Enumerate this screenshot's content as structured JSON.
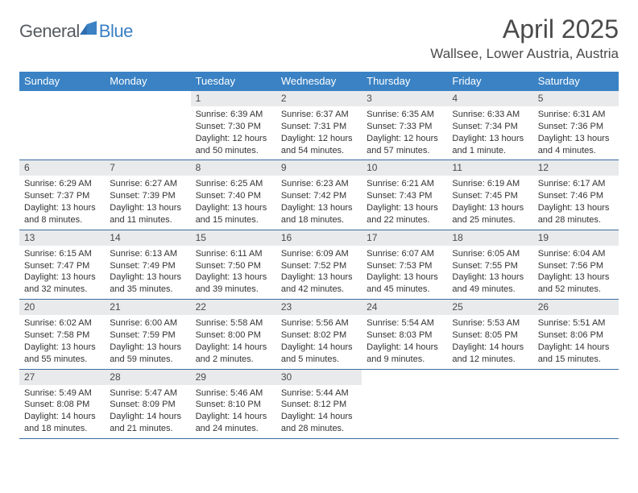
{
  "logo": {
    "text1": "General",
    "text2": "Blue"
  },
  "title": {
    "month": "April 2025",
    "location": "Wallsee, Lower Austria, Austria"
  },
  "colors": {
    "header_bg": "#3a82c4",
    "header_text": "#ffffff",
    "daynum_bg": "#e9eaec",
    "row_divider": "#3a6ea0",
    "body_text": "#333333",
    "title_text": "#4a4a4a",
    "logo_gray": "#555a60",
    "logo_blue": "#3a7fc4"
  },
  "weekdays": [
    "Sunday",
    "Monday",
    "Tuesday",
    "Wednesday",
    "Thursday",
    "Friday",
    "Saturday"
  ],
  "weeks": [
    [
      null,
      null,
      {
        "n": "1",
        "sr": "6:39 AM",
        "ss": "7:30 PM",
        "dl": "12 hours and 50 minutes."
      },
      {
        "n": "2",
        "sr": "6:37 AM",
        "ss": "7:31 PM",
        "dl": "12 hours and 54 minutes."
      },
      {
        "n": "3",
        "sr": "6:35 AM",
        "ss": "7:33 PM",
        "dl": "12 hours and 57 minutes."
      },
      {
        "n": "4",
        "sr": "6:33 AM",
        "ss": "7:34 PM",
        "dl": "13 hours and 1 minute."
      },
      {
        "n": "5",
        "sr": "6:31 AM",
        "ss": "7:36 PM",
        "dl": "13 hours and 4 minutes."
      }
    ],
    [
      {
        "n": "6",
        "sr": "6:29 AM",
        "ss": "7:37 PM",
        "dl": "13 hours and 8 minutes."
      },
      {
        "n": "7",
        "sr": "6:27 AM",
        "ss": "7:39 PM",
        "dl": "13 hours and 11 minutes."
      },
      {
        "n": "8",
        "sr": "6:25 AM",
        "ss": "7:40 PM",
        "dl": "13 hours and 15 minutes."
      },
      {
        "n": "9",
        "sr": "6:23 AM",
        "ss": "7:42 PM",
        "dl": "13 hours and 18 minutes."
      },
      {
        "n": "10",
        "sr": "6:21 AM",
        "ss": "7:43 PM",
        "dl": "13 hours and 22 minutes."
      },
      {
        "n": "11",
        "sr": "6:19 AM",
        "ss": "7:45 PM",
        "dl": "13 hours and 25 minutes."
      },
      {
        "n": "12",
        "sr": "6:17 AM",
        "ss": "7:46 PM",
        "dl": "13 hours and 28 minutes."
      }
    ],
    [
      {
        "n": "13",
        "sr": "6:15 AM",
        "ss": "7:47 PM",
        "dl": "13 hours and 32 minutes."
      },
      {
        "n": "14",
        "sr": "6:13 AM",
        "ss": "7:49 PM",
        "dl": "13 hours and 35 minutes."
      },
      {
        "n": "15",
        "sr": "6:11 AM",
        "ss": "7:50 PM",
        "dl": "13 hours and 39 minutes."
      },
      {
        "n": "16",
        "sr": "6:09 AM",
        "ss": "7:52 PM",
        "dl": "13 hours and 42 minutes."
      },
      {
        "n": "17",
        "sr": "6:07 AM",
        "ss": "7:53 PM",
        "dl": "13 hours and 45 minutes."
      },
      {
        "n": "18",
        "sr": "6:05 AM",
        "ss": "7:55 PM",
        "dl": "13 hours and 49 minutes."
      },
      {
        "n": "19",
        "sr": "6:04 AM",
        "ss": "7:56 PM",
        "dl": "13 hours and 52 minutes."
      }
    ],
    [
      {
        "n": "20",
        "sr": "6:02 AM",
        "ss": "7:58 PM",
        "dl": "13 hours and 55 minutes."
      },
      {
        "n": "21",
        "sr": "6:00 AM",
        "ss": "7:59 PM",
        "dl": "13 hours and 59 minutes."
      },
      {
        "n": "22",
        "sr": "5:58 AM",
        "ss": "8:00 PM",
        "dl": "14 hours and 2 minutes."
      },
      {
        "n": "23",
        "sr": "5:56 AM",
        "ss": "8:02 PM",
        "dl": "14 hours and 5 minutes."
      },
      {
        "n": "24",
        "sr": "5:54 AM",
        "ss": "8:03 PM",
        "dl": "14 hours and 9 minutes."
      },
      {
        "n": "25",
        "sr": "5:53 AM",
        "ss": "8:05 PM",
        "dl": "14 hours and 12 minutes."
      },
      {
        "n": "26",
        "sr": "5:51 AM",
        "ss": "8:06 PM",
        "dl": "14 hours and 15 minutes."
      }
    ],
    [
      {
        "n": "27",
        "sr": "5:49 AM",
        "ss": "8:08 PM",
        "dl": "14 hours and 18 minutes."
      },
      {
        "n": "28",
        "sr": "5:47 AM",
        "ss": "8:09 PM",
        "dl": "14 hours and 21 minutes."
      },
      {
        "n": "29",
        "sr": "5:46 AM",
        "ss": "8:10 PM",
        "dl": "14 hours and 24 minutes."
      },
      {
        "n": "30",
        "sr": "5:44 AM",
        "ss": "8:12 PM",
        "dl": "14 hours and 28 minutes."
      },
      null,
      null,
      null
    ]
  ],
  "labels": {
    "sunrise": "Sunrise:",
    "sunset": "Sunset:",
    "daylight": "Daylight:"
  }
}
